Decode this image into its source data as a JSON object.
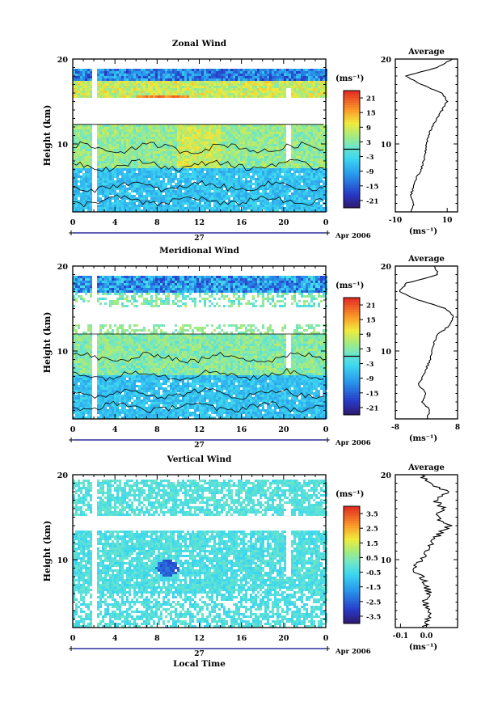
{
  "chart_data": [
    {
      "type": "heatmap",
      "title": "Zonal Wind",
      "ylabel": "Height (km)",
      "ylim": [
        2,
        20
      ],
      "yticks": [
        10,
        20
      ],
      "xlim": [
        0,
        24
      ],
      "xticks": [
        "0",
        "4",
        "8",
        "12",
        "16",
        "20",
        "0"
      ],
      "date_day": "27",
      "date_label": "Apr 2006",
      "colorbar": {
        "unit": "(ms⁻¹)",
        "ticks": [
          "21",
          "15",
          "9",
          "3",
          "-3",
          "-9",
          "-15",
          "-21"
        ],
        "range": [
          -24,
          24
        ],
        "zero_line": true
      },
      "data_gap_hours": [
        2.0,
        20.5
      ],
      "field_summary": {
        "lower_band_km": [
          2,
          7
        ],
        "lower_value": -6,
        "mid_band_km": [
          7,
          12.3
        ],
        "mid_value": 4,
        "core_km": 14.5,
        "core_value": 18,
        "upper_value": -12
      },
      "profile": {
        "title": "Average",
        "xlim": [
          -10,
          14
        ],
        "xticks": [
          "-10",
          "10"
        ],
        "xlabel": "(ms⁻¹)",
        "yticks": [
          "10",
          "20"
        ],
        "points": [
          [
            -4,
            2
          ],
          [
            -3,
            3
          ],
          [
            -4,
            4
          ],
          [
            -3,
            5
          ],
          [
            -2,
            6
          ],
          [
            0,
            7
          ],
          [
            1,
            8
          ],
          [
            1.5,
            9
          ],
          [
            2,
            10
          ],
          [
            3,
            11
          ],
          [
            4,
            12
          ],
          [
            6,
            13
          ],
          [
            8,
            14
          ],
          [
            10,
            15
          ],
          [
            8,
            16
          ],
          [
            0,
            17
          ],
          [
            -6,
            18
          ],
          [
            6,
            19
          ],
          [
            12,
            20
          ]
        ]
      }
    },
    {
      "type": "heatmap",
      "title": "Meridional Wind",
      "ylabel": "Height (km)",
      "ylim": [
        2,
        20
      ],
      "yticks": [
        10,
        20
      ],
      "xlim": [
        0,
        24
      ],
      "xticks": [
        "0",
        "4",
        "8",
        "12",
        "16",
        "20",
        "0"
      ],
      "date_day": "27",
      "date_label": "Apr 2006",
      "colorbar": {
        "unit": "(ms⁻¹)",
        "ticks": [
          "21",
          "15",
          "9",
          "3",
          "-3",
          "-9",
          "-15",
          "-21"
        ],
        "range": [
          -24,
          24
        ],
        "zero_line": true
      },
      "data_gap_hours": [
        2.0,
        20.5
      ],
      "field_summary": {
        "lower_band_km": [
          2,
          7
        ],
        "lower_value": -6,
        "mid_band_km": [
          7,
          12
        ],
        "mid_value": 3,
        "upper_value": -10
      },
      "profile": {
        "title": "Average",
        "xlim": [
          -8,
          8
        ],
        "xticks": [
          "-8",
          "8"
        ],
        "xlabel": "(ms⁻¹)",
        "yticks": [
          "10",
          "20"
        ],
        "points": [
          [
            0,
            2
          ],
          [
            1,
            3
          ],
          [
            -1,
            4
          ],
          [
            0,
            5
          ],
          [
            -2,
            6
          ],
          [
            -1,
            7
          ],
          [
            0,
            8
          ],
          [
            1,
            9
          ],
          [
            1.5,
            10
          ],
          [
            2,
            11
          ],
          [
            3,
            12
          ],
          [
            6,
            13
          ],
          [
            7,
            14
          ],
          [
            5,
            15
          ],
          [
            -2,
            16
          ],
          [
            -7,
            17
          ],
          [
            -5,
            18
          ],
          [
            3,
            19
          ],
          [
            2,
            20
          ]
        ]
      }
    },
    {
      "type": "heatmap",
      "title": "Vertical Wind",
      "ylabel": "Height (km)",
      "xlabel": "Local Time",
      "ylim": [
        2,
        20
      ],
      "yticks": [
        10,
        20
      ],
      "xlim": [
        0,
        24
      ],
      "xticks": [
        "0",
        "4",
        "8",
        "12",
        "16",
        "20",
        "0"
      ],
      "date_day": "27",
      "date_label": "Apr 2006",
      "colorbar": {
        "unit": "(ms⁻¹)",
        "ticks": [
          "3.5",
          "2.5",
          "1.5",
          "0.5",
          "-0.5",
          "-1.5",
          "-2.5",
          "-3.5"
        ],
        "range": [
          -4,
          4
        ],
        "zero_line": false
      },
      "data_gap_hours": [
        2.0,
        20.5
      ],
      "field_summary": {
        "background_value": -0.3,
        "upper_value": -0.2,
        "dip_km": 9,
        "dip_value": -2.5
      },
      "profile": {
        "title": "Average",
        "xlim": [
          -0.12,
          0.12
        ],
        "xticks": [
          "-0.1",
          "0.0"
        ],
        "xlabel": "(ms⁻¹)",
        "yticks": [
          "10",
          "20"
        ],
        "points": [
          [
            -0.01,
            2
          ],
          [
            0.0,
            3
          ],
          [
            0.02,
            4
          ],
          [
            -0.01,
            5
          ],
          [
            0.01,
            6
          ],
          [
            0.0,
            7
          ],
          [
            -0.02,
            8
          ],
          [
            -0.05,
            9
          ],
          [
            -0.02,
            10
          ],
          [
            0.0,
            11
          ],
          [
            0.02,
            12
          ],
          [
            0.05,
            13
          ],
          [
            0.09,
            14
          ],
          [
            0.04,
            15
          ],
          [
            0.07,
            16
          ],
          [
            0.03,
            17
          ],
          [
            0.08,
            18
          ],
          [
            0.02,
            19
          ],
          [
            -0.02,
            20
          ]
        ]
      }
    }
  ]
}
